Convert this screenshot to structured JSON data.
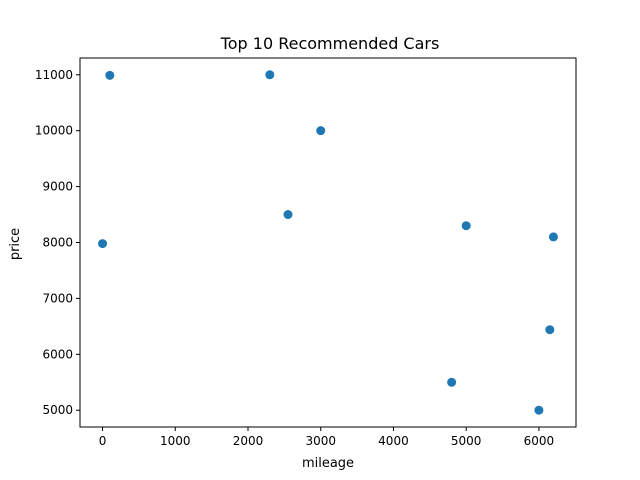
{
  "chart_data": {
    "type": "scatter",
    "title": "Top 10 Recommended Cars",
    "xlabel": "mileage",
    "ylabel": "price",
    "xlim": [
      -310,
      6510
    ],
    "ylim": [
      4700,
      11300
    ],
    "xticks": [
      0,
      1000,
      2000,
      3000,
      4000,
      5000,
      6000
    ],
    "xtick_labels": [
      "0",
      "1000",
      "2000",
      "3000",
      "4000",
      "5000",
      "6000"
    ],
    "yticks": [
      5000,
      6000,
      7000,
      8000,
      9000,
      10000,
      11000
    ],
    "ytick_labels": [
      "5000",
      "6000",
      "7000",
      "8000",
      "9000",
      "10000",
      "11000"
    ],
    "grid": false,
    "marker_color": "#1f77b4",
    "points": [
      {
        "x": 100,
        "y": 10990
      },
      {
        "x": 2300,
        "y": 11000
      },
      {
        "x": 3000,
        "y": 10000
      },
      {
        "x": 2550,
        "y": 8500
      },
      {
        "x": 5000,
        "y": 8300
      },
      {
        "x": 6200,
        "y": 8100
      },
      {
        "x": 0,
        "y": 7980
      },
      {
        "x": 6150,
        "y": 6440
      },
      {
        "x": 4800,
        "y": 5500
      },
      {
        "x": 6000,
        "y": 5000
      }
    ]
  }
}
